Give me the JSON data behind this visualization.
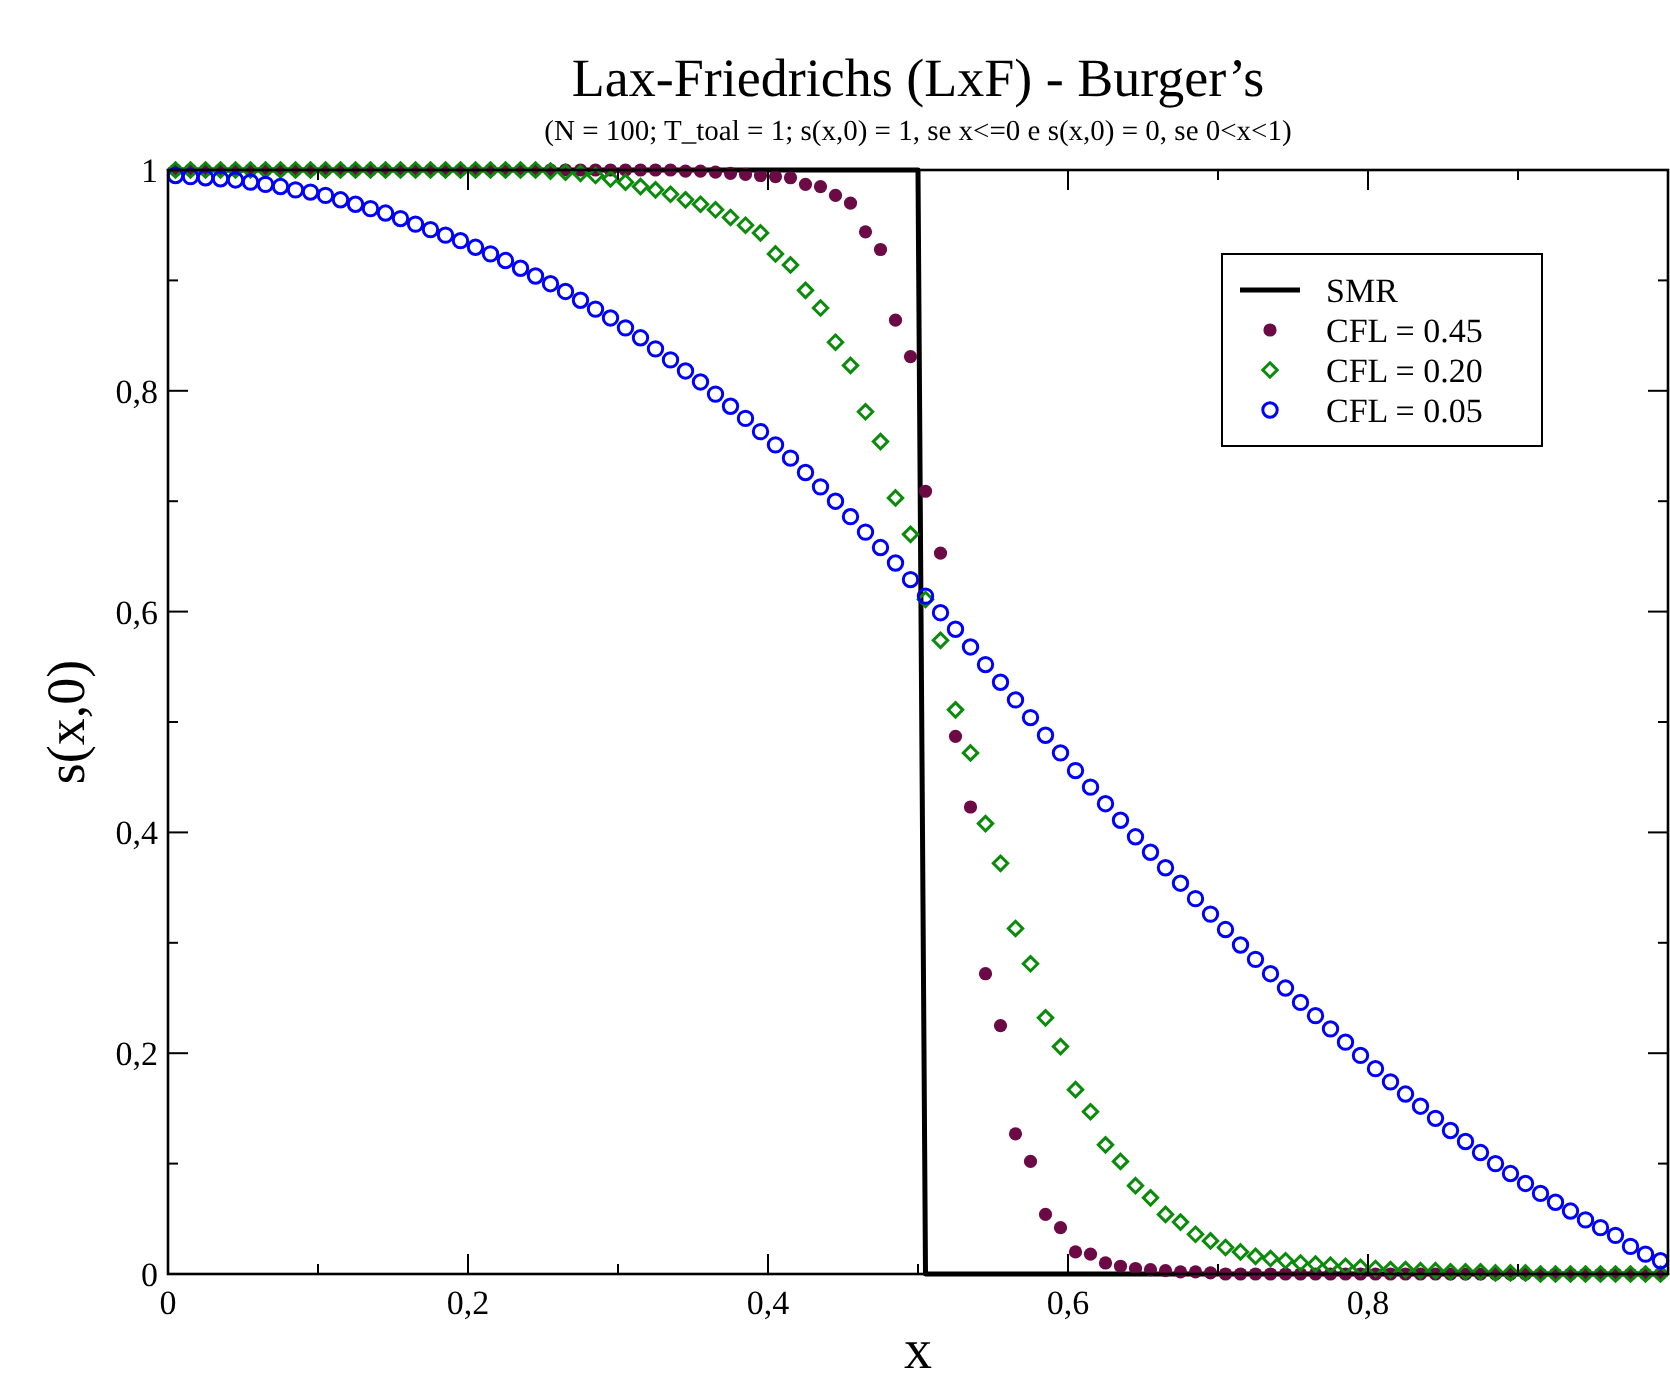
{
  "chart_data": {
    "type": "scatter",
    "title": "Lax-Friedrichs (LxF) - Burger’s",
    "subtitle": "(N = 100; T_toal = 1; s(x,0) = 1, se x<=0 e s(x,0) = 0, se 0<x<1)",
    "xlabel": "x",
    "ylabel": "s(x,0)",
    "xlim": [
      0,
      1
    ],
    "ylim": [
      0,
      1
    ],
    "xticks": [
      {
        "value": 0,
        "label": "0"
      },
      {
        "value": 0.1,
        "label": null
      },
      {
        "value": 0.2,
        "label": "0,2"
      },
      {
        "value": 0.3,
        "label": null
      },
      {
        "value": 0.4,
        "label": "0,4"
      },
      {
        "value": 0.5,
        "label": null
      },
      {
        "value": 0.6,
        "label": "0,6"
      },
      {
        "value": 0.7,
        "label": null
      },
      {
        "value": 0.8,
        "label": "0,8"
      },
      {
        "value": 0.9,
        "label": null
      },
      {
        "value": 1,
        "label": null
      }
    ],
    "yticks": [
      {
        "value": 0,
        "label": "0"
      },
      {
        "value": 0.1,
        "label": null
      },
      {
        "value": 0.2,
        "label": "0,2"
      },
      {
        "value": 0.3,
        "label": null
      },
      {
        "value": 0.4,
        "label": "0,4"
      },
      {
        "value": 0.5,
        "label": null
      },
      {
        "value": 0.6,
        "label": "0,6"
      },
      {
        "value": 0.7,
        "label": null
      },
      {
        "value": 0.8,
        "label": "0,8"
      },
      {
        "value": 0.9,
        "label": null
      },
      {
        "value": 1,
        "label": "1"
      }
    ],
    "grid": false,
    "legend": "top right",
    "x": [
      0.005,
      0.015,
      0.025,
      0.035,
      0.045,
      0.055,
      0.065,
      0.075,
      0.085,
      0.095,
      0.105,
      0.115,
      0.125,
      0.135,
      0.145,
      0.155,
      0.165,
      0.175,
      0.185,
      0.195,
      0.205,
      0.215,
      0.225,
      0.235,
      0.245,
      0.255,
      0.265,
      0.275,
      0.285,
      0.295,
      0.305,
      0.315,
      0.325,
      0.335,
      0.345,
      0.355,
      0.365,
      0.375,
      0.385,
      0.395,
      0.405,
      0.415,
      0.425,
      0.435,
      0.445,
      0.455,
      0.465,
      0.475,
      0.485,
      0.495,
      0.505,
      0.515,
      0.525,
      0.535,
      0.545,
      0.555,
      0.565,
      0.575,
      0.585,
      0.595,
      0.605,
      0.615,
      0.625,
      0.635,
      0.645,
      0.655,
      0.665,
      0.675,
      0.685,
      0.695,
      0.705,
      0.715,
      0.725,
      0.735,
      0.745,
      0.755,
      0.765,
      0.775,
      0.785,
      0.795,
      0.805,
      0.815,
      0.825,
      0.835,
      0.845,
      0.855,
      0.865,
      0.875,
      0.885,
      0.895,
      0.905,
      0.915,
      0.925,
      0.935,
      0.945,
      0.955,
      0.965,
      0.975,
      0.985,
      0.995
    ],
    "series": [
      {
        "name": "SMR",
        "type": "line",
        "color": "#000000",
        "line_style": "solid",
        "marker": "none",
        "x": [
          0,
          0.5,
          0.505,
          1
        ],
        "values": [
          1,
          1,
          0,
          0
        ]
      },
      {
        "name": "CFL = 0.45",
        "color": "#6b0a45",
        "marker": "circle",
        "values": [
          1,
          1,
          1,
          1,
          1,
          1,
          1,
          1,
          1,
          1,
          1,
          1,
          1,
          1,
          1,
          1,
          1,
          1,
          1,
          1,
          1,
          1,
          1,
          1,
          1,
          1,
          1,
          1,
          1,
          1,
          1,
          1,
          1,
          1,
          0.999,
          0.999,
          0.998,
          0.997,
          0.996,
          0.995,
          0.994,
          0.993,
          0.987,
          0.985,
          0.977,
          0.97,
          0.944,
          0.928,
          0.864,
          0.831,
          0.709,
          0.653,
          0.487,
          0.423,
          0.272,
          0.225,
          0.127,
          0.102,
          0.054,
          0.042,
          0.02,
          0.018,
          0.01,
          0.007,
          0.005,
          0.004,
          0.003,
          0.002,
          0.002,
          0.001,
          0,
          0,
          0,
          0,
          0,
          0,
          0,
          0,
          0,
          0,
          0,
          0,
          0,
          0,
          0,
          0,
          0,
          0,
          0,
          0,
          0,
          0,
          0,
          0,
          0,
          0,
          0,
          0,
          0,
          0
        ]
      },
      {
        "name": "CFL = 0.20",
        "color": "#0a8c0a",
        "marker": "diamond",
        "values": [
          1,
          1,
          1,
          1,
          1,
          1,
          1,
          1,
          1,
          1,
          1,
          1,
          1,
          1,
          1,
          1,
          1,
          1,
          1,
          1,
          1,
          1,
          1,
          1,
          1,
          0.999,
          0.998,
          0.997,
          0.995,
          0.992,
          0.989,
          0.985,
          0.982,
          0.978,
          0.973,
          0.969,
          0.964,
          0.957,
          0.95,
          0.943,
          0.924,
          0.914,
          0.891,
          0.875,
          0.844,
          0.823,
          0.781,
          0.754,
          0.703,
          0.67,
          0.611,
          0.574,
          0.511,
          0.472,
          0.408,
          0.372,
          0.313,
          0.281,
          0.232,
          0.206,
          0.167,
          0.147,
          0.117,
          0.102,
          0.08,
          0.069,
          0.054,
          0.047,
          0.036,
          0.03,
          0.024,
          0.02,
          0.016,
          0.014,
          0.012,
          0.01,
          0.009,
          0.008,
          0.007,
          0.006,
          0.005,
          0.004,
          0.004,
          0.003,
          0.003,
          0.002,
          0.002,
          0.002,
          0.001,
          0.001,
          0.001,
          0,
          0,
          0,
          0,
          0,
          0,
          0,
          0,
          0
        ]
      },
      {
        "name": "CFL = 0.05",
        "color": "#0000ff",
        "marker": "circle",
        "values": [
          0.995,
          0.994,
          0.993,
          0.992,
          0.991,
          0.989,
          0.987,
          0.985,
          0.982,
          0.98,
          0.977,
          0.973,
          0.969,
          0.965,
          0.961,
          0.956,
          0.951,
          0.946,
          0.941,
          0.936,
          0.93,
          0.924,
          0.918,
          0.911,
          0.904,
          0.897,
          0.89,
          0.882,
          0.874,
          0.866,
          0.857,
          0.848,
          0.838,
          0.828,
          0.818,
          0.808,
          0.797,
          0.786,
          0.775,
          0.763,
          0.751,
          0.739,
          0.726,
          0.713,
          0.7,
          0.686,
          0.672,
          0.658,
          0.644,
          0.629,
          0.614,
          0.599,
          0.584,
          0.568,
          0.552,
          0.536,
          0.52,
          0.504,
          0.488,
          0.472,
          0.456,
          0.441,
          0.426,
          0.411,
          0.396,
          0.382,
          0.368,
          0.354,
          0.34,
          0.326,
          0.312,
          0.298,
          0.285,
          0.272,
          0.259,
          0.246,
          0.234,
          0.222,
          0.21,
          0.198,
          0.186,
          0.174,
          0.163,
          0.152,
          0.141,
          0.13,
          0.12,
          0.11,
          0.1,
          0.091,
          0.082,
          0.073,
          0.065,
          0.057,
          0.049,
          0.042,
          0.035,
          0.025,
          0.018,
          0.012
        ]
      }
    ]
  }
}
